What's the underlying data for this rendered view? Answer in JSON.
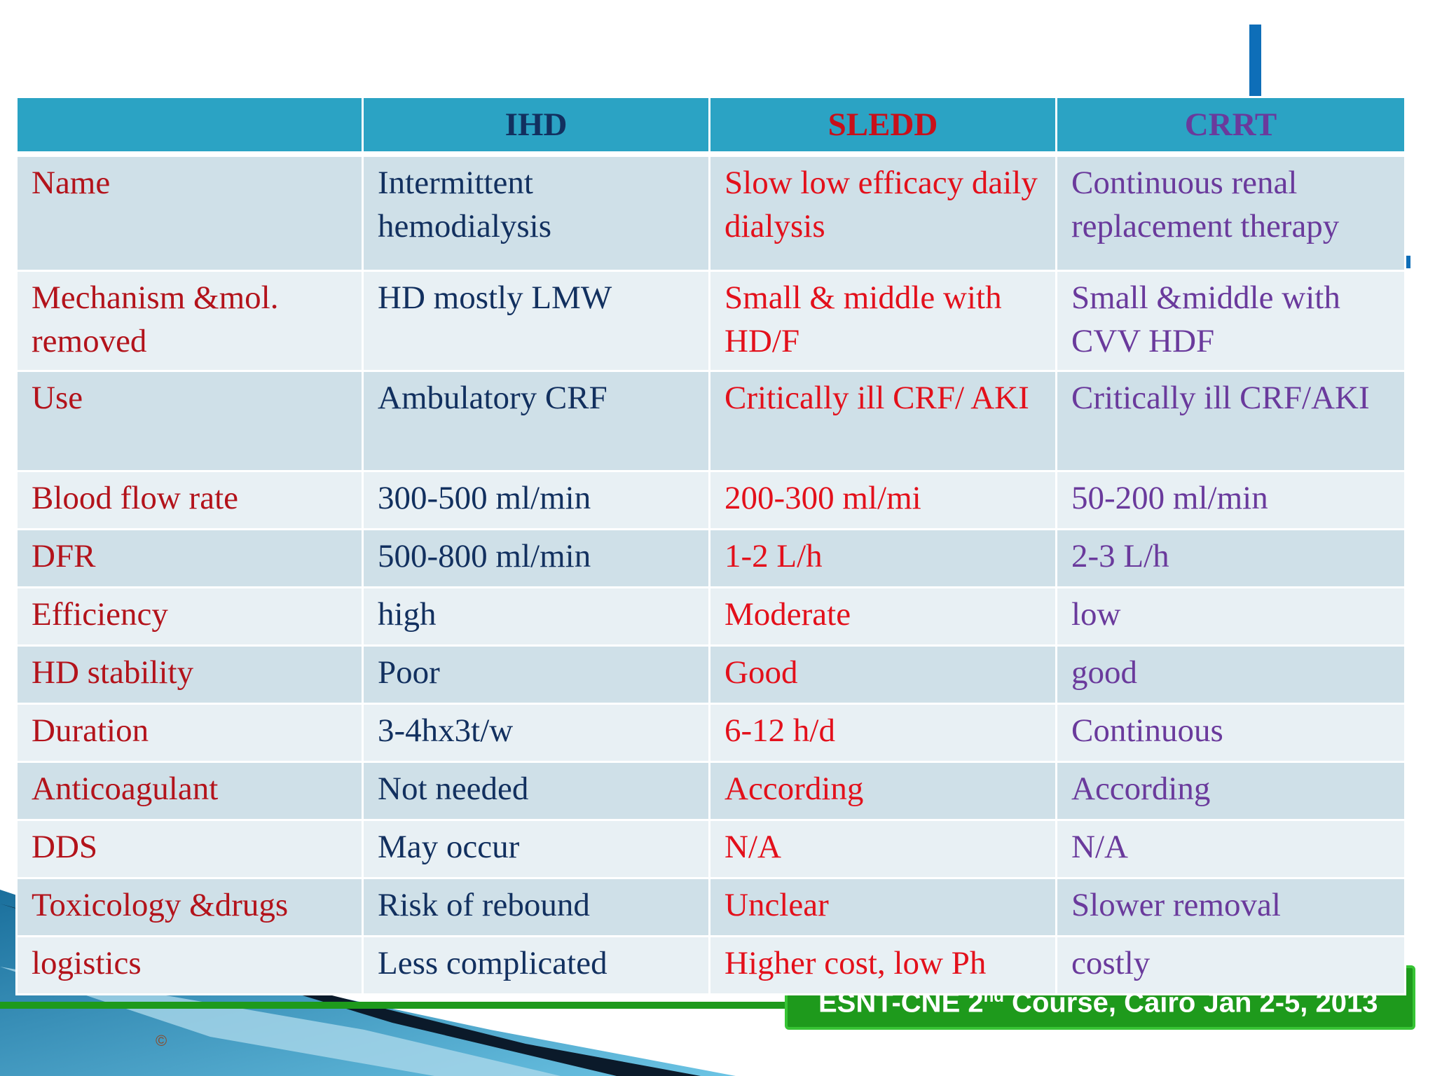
{
  "table": {
    "headers": [
      "",
      "IHD",
      "SLEDD",
      "CRRT"
    ],
    "rows": [
      {
        "label": "Name",
        "ihd": "Intermittent hemodialysis",
        "sledd": "Slow low efficacy daily dialysis",
        "crrt": "Continuous renal replacement therapy"
      },
      {
        "label": "Mechanism &mol. removed",
        "ihd": "HD mostly LMW",
        "sledd": "Small & middle with HD/F",
        "crrt": "Small &middle with CVV HDF"
      },
      {
        "label": "Use",
        "ihd": "Ambulatory CRF",
        "sledd": "Critically ill CRF/ AKI",
        "crrt": "Critically ill CRF/AKI"
      },
      {
        "label": "Blood flow rate",
        "ihd": "300-500 ml/min",
        "sledd": "200-300 ml/mi",
        "crrt": "50-200 ml/min"
      },
      {
        "label": "DFR",
        "ihd": "500-800 ml/min",
        "sledd": "1-2 L/h",
        "crrt": "2-3 L/h"
      },
      {
        "label": "Efficiency",
        "ihd": "high",
        "sledd": "Moderate",
        "crrt": "low"
      },
      {
        "label": "HD stability",
        "ihd": "Poor",
        "sledd": "Good",
        "crrt": "good"
      },
      {
        "label": "Duration",
        "ihd": "3-4hx3t/w",
        "sledd": "6-12 h/d",
        "crrt": "Continuous"
      },
      {
        "label": "Anticoagulant",
        "ihd": "Not needed",
        "sledd": "According",
        "crrt": "According"
      },
      {
        "label": "DDS",
        "ihd": "May occur",
        "sledd": "N/A",
        "crrt": "N/A"
      },
      {
        "label": "Toxicology &drugs",
        "ihd": "Risk of rebound",
        "sledd": "Unclear",
        "crrt": "Slower removal"
      },
      {
        "label": "logistics",
        "ihd": "Less complicated",
        "sledd": "Higher cost, low Ph",
        "crrt": "costly"
      }
    ]
  },
  "footer": {
    "text_a": "ESNT-CNE 2",
    "text_sup": "nd",
    "text_b": " Course, Cairo Jan 2-5, 2013"
  },
  "copyright": "©",
  "colors": {
    "header_bg": "#2ba3c4",
    "row_odd": "#cfe0e8",
    "row_even": "#e8f0f4",
    "label": "#b3131b",
    "ihd": "#12305f",
    "sledd": "#e3101b",
    "crrt": "#6a3a9c",
    "footer_bg": "#1e9a1c"
  }
}
